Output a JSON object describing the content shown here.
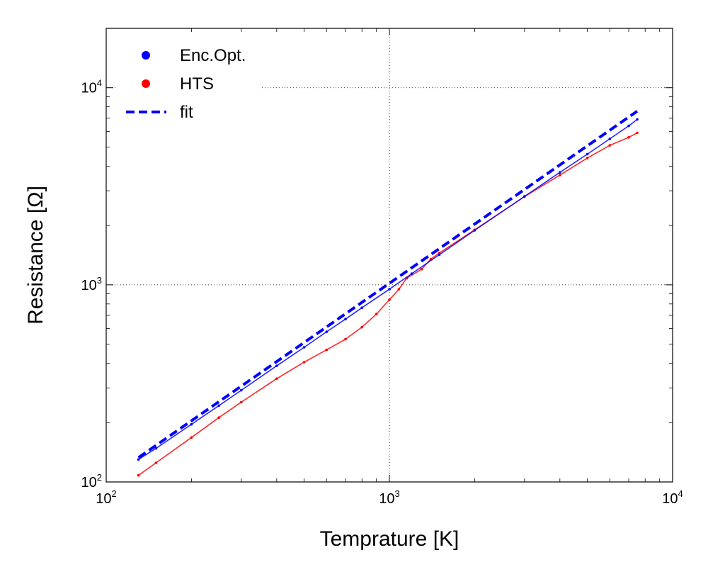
{
  "chart_data": {
    "type": "line",
    "xlabel": "Temprature [K]",
    "ylabel": "Resistance [Ω]",
    "xscale": "log",
    "yscale": "log",
    "xlim": [
      100,
      10000
    ],
    "ylim": [
      100,
      20000
    ],
    "grid": true,
    "legend_position": "top-left",
    "x_ticks": [
      {
        "value": 100,
        "base": "10",
        "exp": "2"
      },
      {
        "value": 1000,
        "base": "10",
        "exp": "3"
      },
      {
        "value": 10000,
        "base": "10",
        "exp": "4"
      }
    ],
    "y_ticks": [
      {
        "value": 100,
        "base": "10",
        "exp": "2"
      },
      {
        "value": 1000,
        "base": "10",
        "exp": "3"
      },
      {
        "value": 10000,
        "base": "10",
        "exp": "4"
      }
    ],
    "series": [
      {
        "name": "Enc.Opt.",
        "style": "dots",
        "color": "#0000ff",
        "x": [
          130,
          150,
          200,
          250,
          300,
          400,
          500,
          600,
          700,
          800,
          1000,
          1200,
          1500,
          2000,
          3000,
          4000,
          5000,
          6000,
          7000,
          7500
        ],
        "y": [
          130,
          148,
          196,
          244,
          292,
          388,
          482,
          578,
          670,
          765,
          950,
          1140,
          1420,
          1890,
          2810,
          3720,
          4600,
          5500,
          6400,
          6900
        ]
      },
      {
        "name": "HTS",
        "style": "dots",
        "color": "#ff0000",
        "x": [
          130,
          150,
          200,
          250,
          300,
          400,
          500,
          600,
          700,
          800,
          900,
          1000,
          1080,
          1150,
          1300,
          1400,
          1500,
          2000,
          3000,
          4000,
          5000,
          6000,
          7000,
          7500
        ],
        "y": [
          108,
          125,
          168,
          212,
          254,
          334,
          405,
          468,
          530,
          610,
          710,
          840,
          950,
          1080,
          1200,
          1350,
          1450,
          1900,
          2800,
          3600,
          4400,
          5100,
          5600,
          5900
        ]
      },
      {
        "name": "fit",
        "style": "dashed",
        "color": "#0000ff",
        "x": [
          130,
          7500
        ],
        "y": [
          133,
          7600
        ]
      }
    ]
  }
}
